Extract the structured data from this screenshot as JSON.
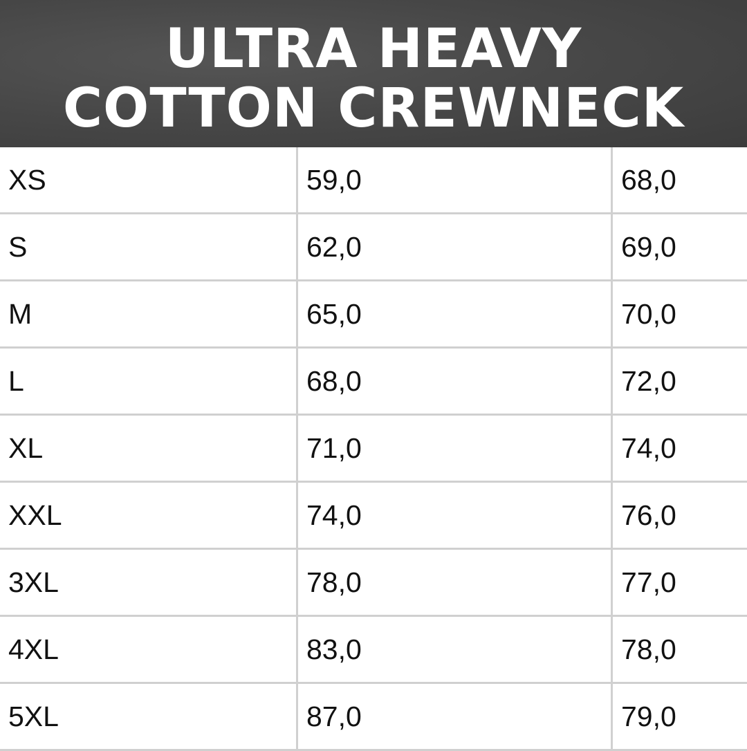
{
  "title": {
    "line1": "ULTRA HEAVY",
    "line2": "COTTON CREWNECK"
  },
  "colors": {
    "header_bg": "#474747",
    "grid": "#d0d0d0",
    "text": "#111111"
  },
  "rows": [
    [
      "XS",
      "59,0",
      "68,0"
    ],
    [
      "S",
      "62,0",
      "69,0"
    ],
    [
      "M",
      "65,0",
      "70,0"
    ],
    [
      "L",
      "68,0",
      "72,0"
    ],
    [
      "XL",
      "71,0",
      "74,0"
    ],
    [
      "XXL",
      "74,0",
      "76,0"
    ],
    [
      "3XL",
      "78,0",
      "77,0"
    ],
    [
      "4XL",
      "83,0",
      "78,0"
    ],
    [
      "5XL",
      "87,0",
      "79,0"
    ]
  ]
}
